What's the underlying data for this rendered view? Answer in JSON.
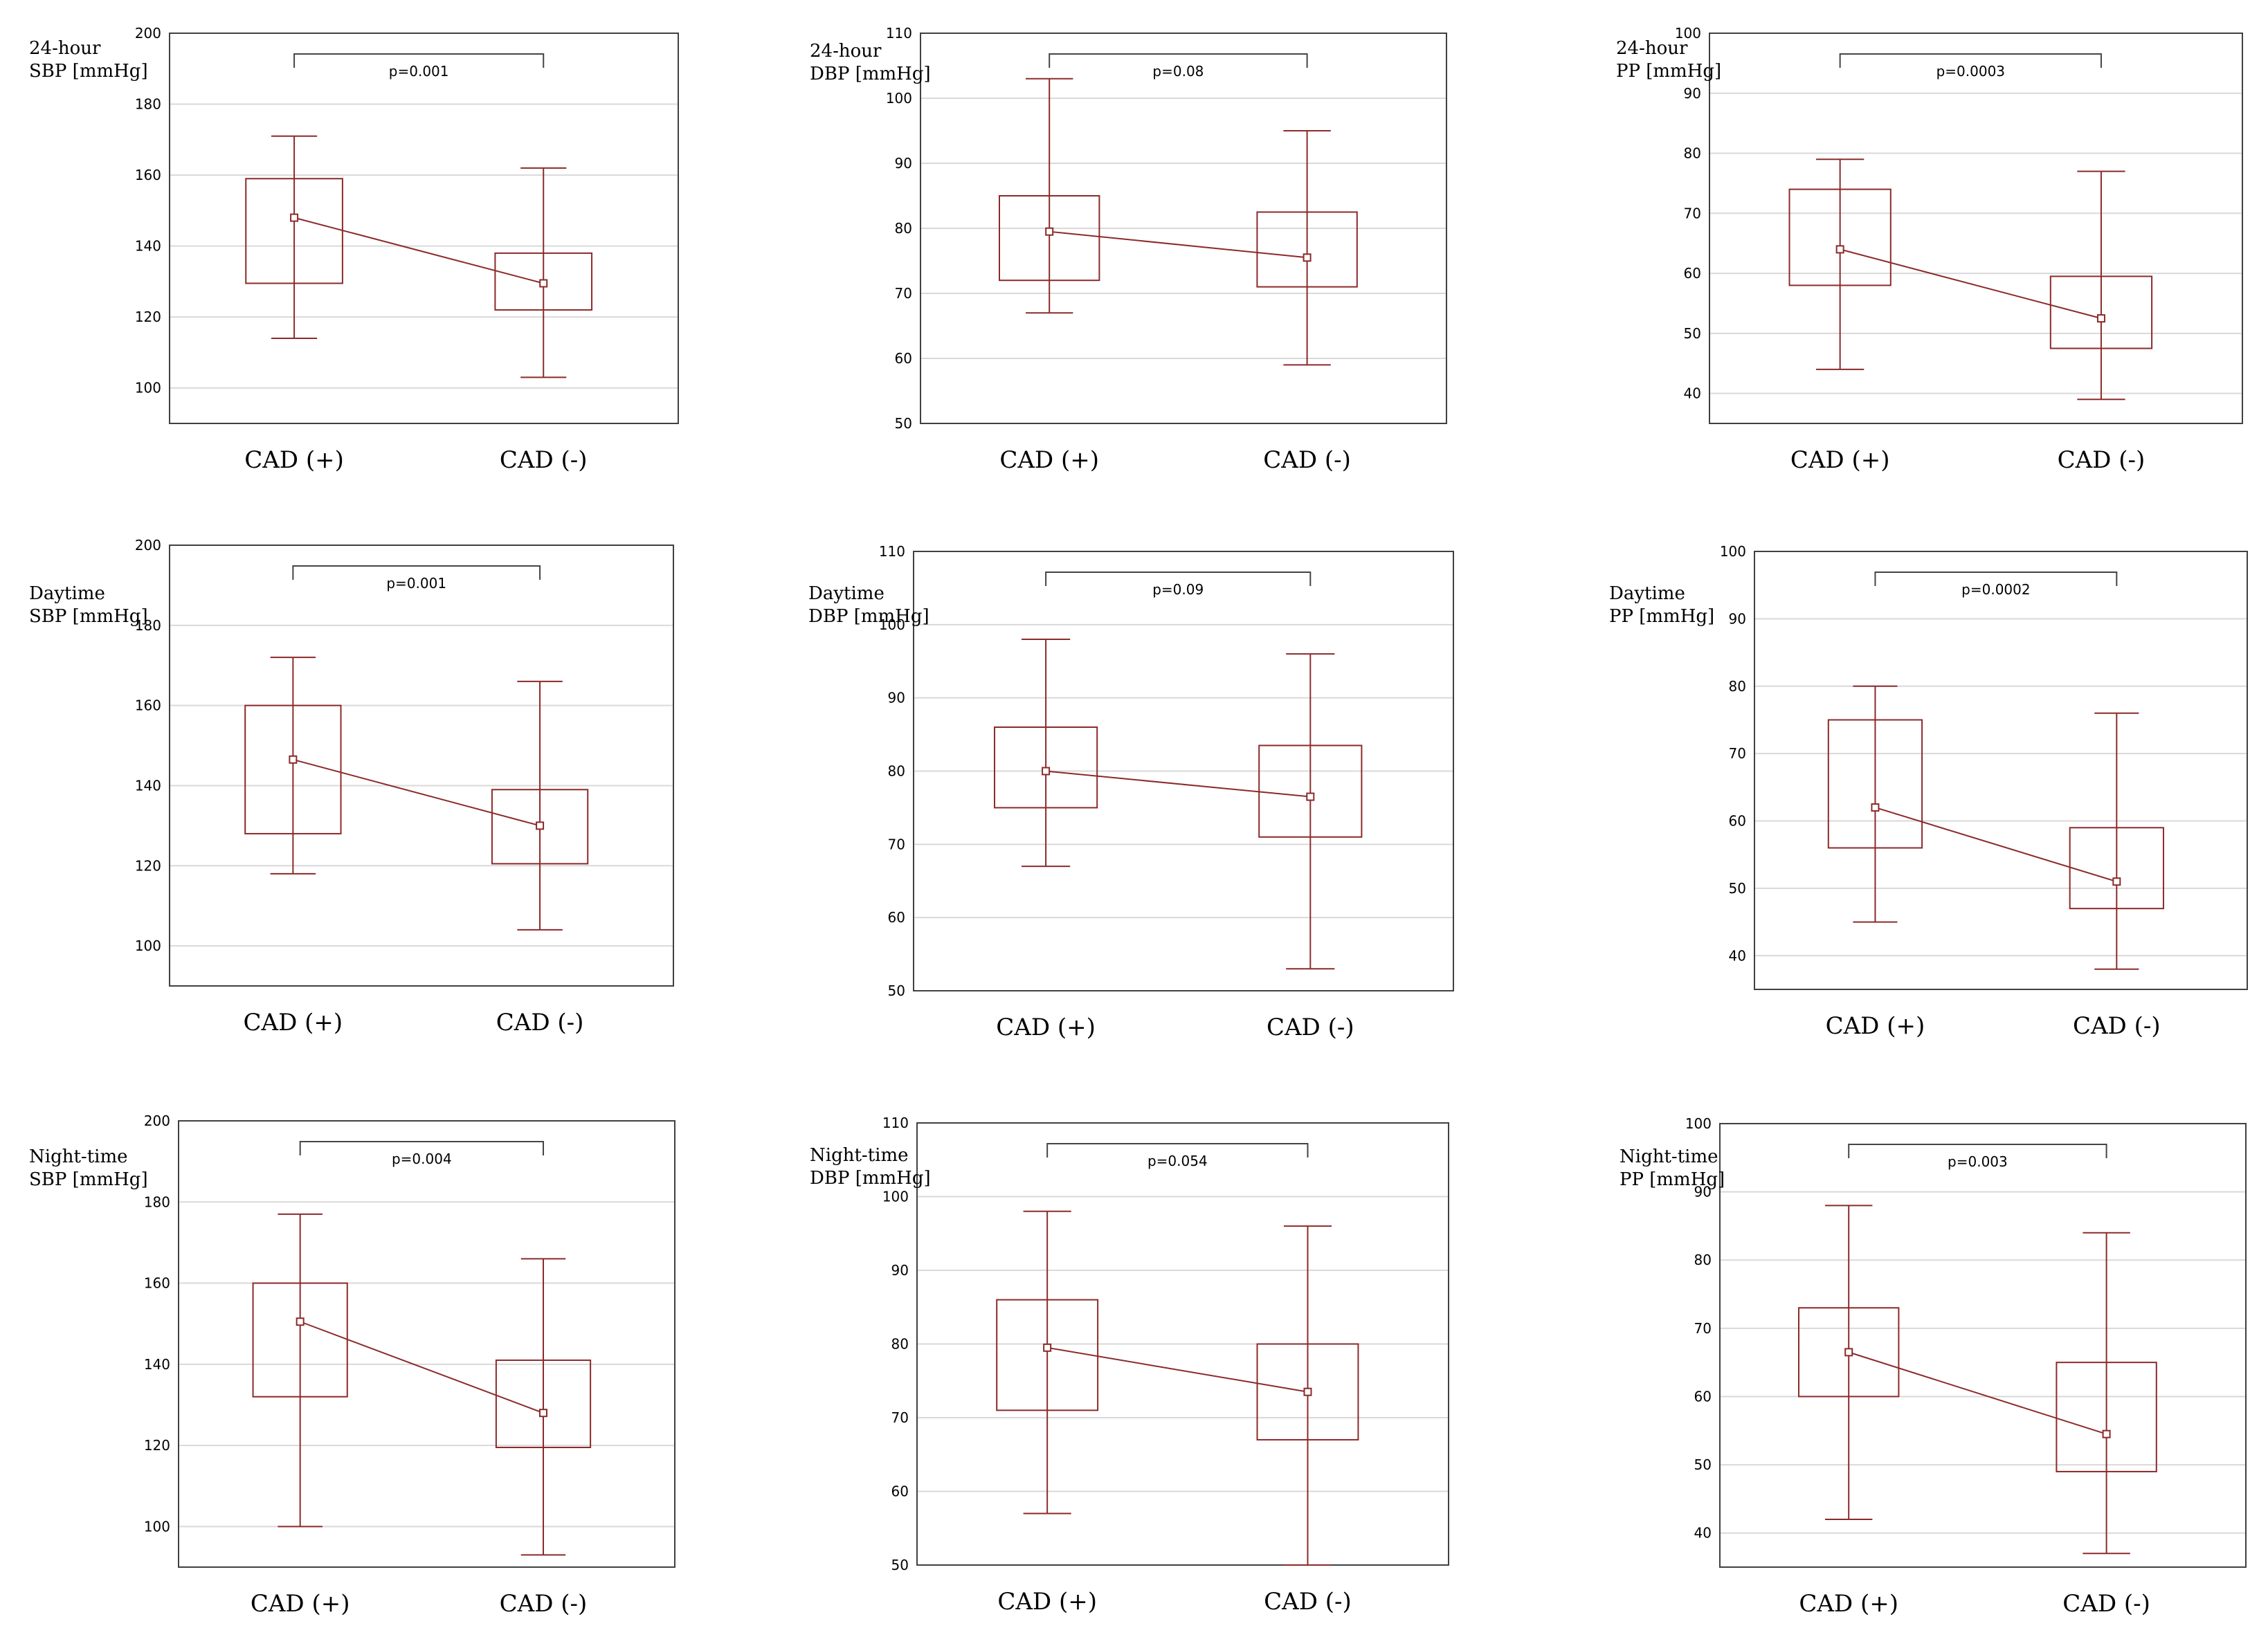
{
  "colors": {
    "box": "#8c2a2a",
    "grid": "#d9d9d9",
    "frame": "#404040",
    "bracket": "#444444"
  },
  "chart_data": [
    {
      "type": "box",
      "ylabel_lines": [
        "24-hour",
        "SBP [mmHg]"
      ],
      "ylim": [
        90,
        200
      ],
      "yticks": [
        100,
        120,
        140,
        160,
        180,
        200
      ],
      "categories": [
        "CAD (+)",
        "CAD (-)"
      ],
      "p_value": "p=0.001",
      "series": [
        {
          "min": 114,
          "q1": 129.5,
          "mean": 148,
          "q3": 159,
          "max": 171
        },
        {
          "min": 103,
          "q1": 122,
          "mean": 129.5,
          "q3": 138,
          "max": 162
        }
      ]
    },
    {
      "type": "box",
      "ylabel_lines": [
        "24-hour",
        "DBP [mmHg]"
      ],
      "ylim": [
        50,
        110
      ],
      "yticks": [
        50,
        60,
        70,
        80,
        90,
        100,
        110
      ],
      "categories": [
        "CAD (+)",
        "CAD (-)"
      ],
      "p_value": "p=0.08",
      "series": [
        {
          "min": 67,
          "q1": 72,
          "mean": 79.5,
          "q3": 85,
          "max": 103
        },
        {
          "min": 59,
          "q1": 71,
          "mean": 75.5,
          "q3": 82.5,
          "max": 95
        }
      ]
    },
    {
      "type": "box",
      "ylabel_lines": [
        "24-hour",
        "PP  [mmHg]"
      ],
      "ylim": [
        35,
        100
      ],
      "yticks": [
        40,
        50,
        60,
        70,
        80,
        90,
        100
      ],
      "categories": [
        "CAD (+)",
        "CAD (-)"
      ],
      "p_value": "p=0.0003",
      "series": [
        {
          "min": 44,
          "q1": 58,
          "mean": 64,
          "q3": 74,
          "max": 79
        },
        {
          "min": 39,
          "q1": 47.5,
          "mean": 52.5,
          "q3": 59.5,
          "max": 77
        }
      ]
    },
    {
      "type": "box",
      "ylabel_lines": [
        "Daytime",
        "SBP [mmHg]"
      ],
      "ylim": [
        90,
        200
      ],
      "yticks": [
        100,
        120,
        140,
        160,
        180,
        200
      ],
      "categories": [
        "CAD (+)",
        "CAD (-)"
      ],
      "p_value": "p=0.001",
      "series": [
        {
          "min": 118,
          "q1": 128,
          "mean": 146.5,
          "q3": 160,
          "max": 172
        },
        {
          "min": 104,
          "q1": 120.5,
          "mean": 130,
          "q3": 139,
          "max": 166
        }
      ]
    },
    {
      "type": "box",
      "ylabel_lines": [
        "Daytime",
        "DBP [mmHg]"
      ],
      "ylim": [
        50,
        110
      ],
      "yticks": [
        50,
        60,
        70,
        80,
        90,
        100,
        110
      ],
      "categories": [
        "CAD (+)",
        "CAD (-)"
      ],
      "p_value": "p=0.09",
      "series": [
        {
          "min": 67,
          "q1": 75,
          "mean": 80,
          "q3": 86,
          "max": 98
        },
        {
          "min": 53,
          "q1": 71,
          "mean": 76.5,
          "q3": 83.5,
          "max": 96
        }
      ]
    },
    {
      "type": "box",
      "ylabel_lines": [
        "Daytime",
        "PP [mmHg]"
      ],
      "ylim": [
        35,
        100
      ],
      "yticks": [
        40,
        50,
        60,
        70,
        80,
        90,
        100
      ],
      "categories": [
        "CAD (+)",
        "CAD (-)"
      ],
      "p_value": "p=0.0002",
      "series": [
        {
          "min": 45,
          "q1": 56,
          "mean": 62,
          "q3": 75,
          "max": 80
        },
        {
          "min": 38,
          "q1": 47,
          "mean": 51,
          "q3": 59,
          "max": 76
        }
      ]
    },
    {
      "type": "box",
      "ylabel_lines": [
        "Night-time",
        "SBP [mmHg]"
      ],
      "ylim": [
        90,
        200
      ],
      "yticks": [
        100,
        120,
        140,
        160,
        180,
        200
      ],
      "categories": [
        "CAD (+)",
        "CAD (-)"
      ],
      "p_value": "p=0.004",
      "series": [
        {
          "min": 100,
          "q1": 132,
          "mean": 150.5,
          "q3": 160,
          "max": 177
        },
        {
          "min": 93,
          "q1": 119.5,
          "mean": 128,
          "q3": 141,
          "max": 166
        }
      ]
    },
    {
      "type": "box",
      "ylabel_lines": [
        "Night-time",
        "DBP [mmHg]"
      ],
      "ylim": [
        50,
        110
      ],
      "yticks": [
        50,
        60,
        70,
        80,
        90,
        100,
        110
      ],
      "categories": [
        "CAD (+)",
        "CAD (-)"
      ],
      "p_value": "p=0.054",
      "series": [
        {
          "min": 57,
          "q1": 71,
          "mean": 79.5,
          "q3": 86,
          "max": 98
        },
        {
          "min": 50,
          "q1": 67,
          "mean": 73.5,
          "q3": 80,
          "max": 96
        }
      ]
    },
    {
      "type": "box",
      "ylabel_lines": [
        "Night-time",
        "PP [mmHg]"
      ],
      "ylim": [
        35,
        100
      ],
      "yticks": [
        40,
        50,
        60,
        70,
        80,
        90,
        100
      ],
      "categories": [
        "CAD (+)",
        "CAD (-)"
      ],
      "p_value": "p=0.003",
      "series": [
        {
          "min": 42,
          "q1": 60,
          "mean": 66.5,
          "q3": 73,
          "max": 88
        },
        {
          "min": 37,
          "q1": 49,
          "mean": 54.5,
          "q3": 65,
          "max": 84
        }
      ]
    }
  ]
}
